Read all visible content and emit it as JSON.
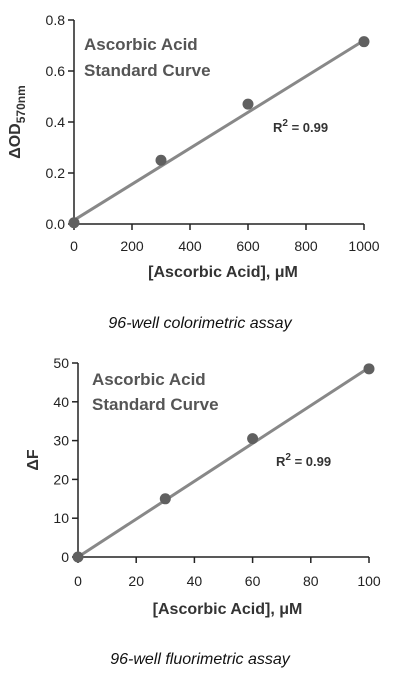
{
  "chart_data": [
    {
      "type": "scatter",
      "title_lines": [
        "Ascorbic Acid",
        "Standard Curve"
      ],
      "xlabel": "[Ascorbic Acid], μM",
      "ylabel_main": "ΔOD",
      "ylabel_sub": "570nm",
      "xlim": [
        0,
        1000
      ],
      "ylim": [
        0,
        0.8
      ],
      "xticks": [
        0,
        200,
        400,
        600,
        800,
        1000
      ],
      "yticks": [
        0.0,
        0.2,
        0.4,
        0.6,
        0.8
      ],
      "ytick_labels": [
        "0.0",
        "0.2",
        "0.4",
        "0.6",
        "0.8"
      ],
      "xtick_labels": [
        "0",
        "200",
        "400",
        "600",
        "800",
        "1000"
      ],
      "points": [
        {
          "x": 0,
          "y": 0.005
        },
        {
          "x": 300,
          "y": 0.25
        },
        {
          "x": 600,
          "y": 0.47
        },
        {
          "x": 1000,
          "y": 0.715
        }
      ],
      "fit": {
        "x0": 0,
        "y0": 0.015,
        "x1": 1000,
        "y1": 0.72
      },
      "r2_base": "R",
      "r2_sup": "2",
      "r2_rest": " = 0.99",
      "caption": "96-well colorimetric assay",
      "grid": false
    },
    {
      "type": "scatter",
      "title_lines": [
        "Ascorbic  Acid",
        "Standard Curve"
      ],
      "xlabel": "[Ascorbic Acid], μM",
      "ylabel_main": "ΔF",
      "ylabel_sub": "",
      "xlim": [
        0,
        100
      ],
      "ylim": [
        0,
        50
      ],
      "xticks": [
        0,
        20,
        40,
        60,
        80,
        100
      ],
      "yticks": [
        0,
        10,
        20,
        30,
        40,
        50
      ],
      "ytick_labels": [
        "0",
        "10",
        "20",
        "30",
        "40",
        "50"
      ],
      "xtick_labels": [
        "0",
        "20",
        "40",
        "60",
        "80",
        "100"
      ],
      "points": [
        {
          "x": 0,
          "y": 0
        },
        {
          "x": 30,
          "y": 15
        },
        {
          "x": 60,
          "y": 30.5
        },
        {
          "x": 100,
          "y": 48.5
        }
      ],
      "fit": {
        "x0": 0,
        "y0": 0,
        "x1": 100,
        "y1": 48.8
      },
      "r2_base": "R",
      "r2_sup": "2",
      "r2_rest": " = 0.99",
      "caption": "96-well fluorimetric assay",
      "grid": false
    }
  ],
  "colors": {
    "line": "#888888",
    "marker": "#606060",
    "axis": "#222222",
    "annotation": "#555555"
  }
}
